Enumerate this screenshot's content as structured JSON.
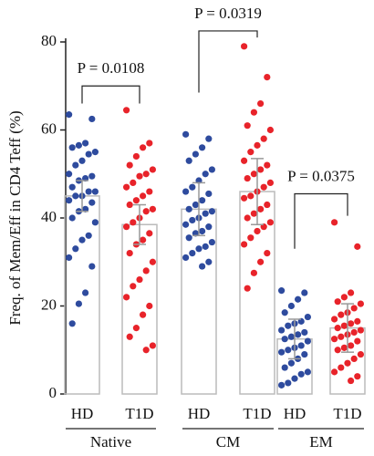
{
  "chart_data": {
    "type": "bar",
    "ylabel": "Freq. of Mem/Eff in CD4 Teff (%)",
    "ylim": [
      0,
      80
    ],
    "yticks": [
      0,
      20,
      40,
      60,
      80
    ],
    "categories": [
      "HD",
      "T1D",
      "HD",
      "T1D",
      "HD",
      "T1D"
    ],
    "groups": [
      "Native",
      "CM",
      "EM"
    ],
    "colors": [
      "#2e4b9e",
      "#e8232a",
      "#2e4b9e",
      "#e8232a",
      "#2e4b9e",
      "#e8232a"
    ],
    "values": [
      45,
      38.5,
      42,
      46,
      12.5,
      15
    ],
    "errors": [
      3.5,
      4.5,
      6,
      7.5,
      4.5,
      5.5
    ],
    "points": [
      [
        63.5,
        62.5,
        57,
        56.5,
        56,
        55,
        54.5,
        53,
        52,
        50,
        49.5,
        49,
        48.5,
        47,
        46,
        46,
        45,
        45,
        44,
        43.5,
        42,
        41.5,
        40,
        39,
        36,
        35,
        33,
        31,
        29,
        23,
        20.5,
        16
      ],
      [
        64.5,
        57,
        56,
        54,
        52,
        51,
        50,
        49.5,
        48,
        47,
        46,
        45,
        44,
        43,
        42,
        41.5,
        40,
        39,
        38,
        36.5,
        35,
        34,
        32,
        30,
        28,
        26,
        24.5,
        22,
        20,
        18,
        15,
        13,
        11,
        10
      ],
      [
        59,
        58,
        56,
        54.5,
        53,
        51,
        50,
        48.5,
        47,
        46,
        45.5,
        44,
        43,
        42,
        41.5,
        41,
        40,
        39.5,
        38.5,
        38,
        37,
        36.5,
        35.5,
        34.5,
        33.5,
        33,
        32,
        31,
        30,
        29
      ],
      [
        79,
        72,
        66,
        64,
        61,
        60,
        58,
        56.5,
        55,
        53,
        52,
        51,
        50,
        49,
        48,
        47,
        46,
        45,
        44.5,
        43,
        42,
        41,
        40,
        39,
        38,
        37,
        35.5,
        34,
        32,
        30,
        27.5,
        24
      ],
      [
        23.5,
        23,
        21.5,
        20,
        18.5,
        17.5,
        16.5,
        16,
        15.5,
        14.5,
        14,
        13.5,
        13,
        12.5,
        12,
        11,
        10.5,
        10,
        9.5,
        9,
        8,
        7,
        6,
        5,
        4.5,
        3.5,
        2.5,
        2
      ],
      [
        39,
        33.5,
        23,
        22,
        21,
        20.5,
        19.5,
        18.5,
        18,
        17,
        16.5,
        16,
        15.5,
        15,
        14.5,
        14,
        13.5,
        13,
        12.5,
        12,
        11,
        10.5,
        10,
        9,
        8,
        7,
        6,
        5,
        4,
        3
      ]
    ],
    "brackets": [
      {
        "label": "P = 0.0108",
        "pair": [
          0,
          1
        ],
        "y": 70,
        "ends": [
          66,
          66
        ]
      },
      {
        "label": "P = 0.0319",
        "pair": [
          2,
          3
        ],
        "y": 82.5,
        "ends": [
          68.5,
          81
        ]
      },
      {
        "label": "P = 0.0375",
        "pair": [
          4,
          5
        ],
        "y": 45.5,
        "ends": [
          33,
          40.5
        ]
      }
    ]
  }
}
